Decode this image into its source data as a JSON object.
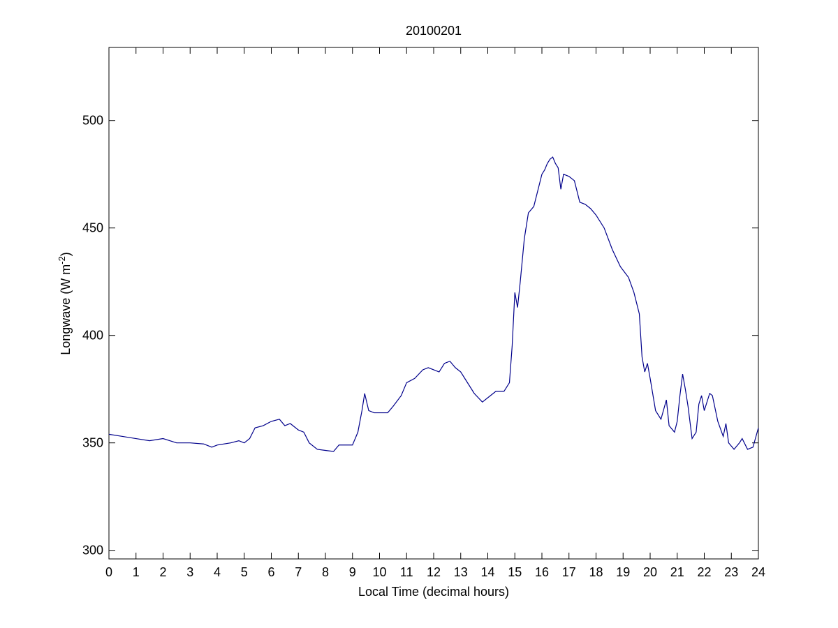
{
  "chart_data": {
    "type": "line",
    "title": "20100201",
    "x_label": "Local Time (decimal hours)",
    "y_label": "Longwave (W m",
    "y_label_sup": "-2",
    "y_label_end": ")",
    "xlim": [
      0,
      24
    ],
    "xticks": [
      0,
      1,
      2,
      3,
      4,
      5,
      6,
      7,
      8,
      9,
      10,
      11,
      12,
      13,
      14,
      15,
      16,
      17,
      18,
      19,
      20,
      21,
      22,
      23,
      24
    ],
    "ylim": [
      296,
      534
    ],
    "yticks": [
      300,
      350,
      400,
      450,
      500
    ],
    "x": [
      0,
      0.5,
      1,
      1.5,
      2,
      2.5,
      3,
      3.5,
      3.8,
      4,
      4.5,
      4.8,
      5,
      5.2,
      5.4,
      5.7,
      6,
      6.3,
      6.5,
      6.7,
      7,
      7.2,
      7.4,
      7.7,
      8,
      8.3,
      8.5,
      8.8,
      9,
      9.2,
      9.35,
      9.45,
      9.6,
      9.8,
      10,
      10.3,
      10.5,
      10.8,
      11,
      11.3,
      11.6,
      11.8,
      12,
      12.2,
      12.4,
      12.6,
      12.8,
      13,
      13.2,
      13.5,
      13.8,
      14,
      14.3,
      14.6,
      14.8,
      14.9,
      15,
      15.1,
      15.2,
      15.35,
      15.5,
      15.7,
      15.9,
      16,
      16.1,
      16.2,
      16.3,
      16.4,
      16.5,
      16.6,
      16.7,
      16.8,
      17,
      17.2,
      17.4,
      17.6,
      17.8,
      18,
      18.3,
      18.6,
      18.9,
      19.2,
      19.4,
      19.6,
      19.7,
      19.8,
      19.9,
      20,
      20.2,
      20.4,
      20.6,
      20.7,
      20.9,
      21,
      21.1,
      21.2,
      21.3,
      21.4,
      21.55,
      21.7,
      21.8,
      21.9,
      22,
      22.2,
      22.3,
      22.5,
      22.7,
      22.8,
      22.9,
      23.1,
      23.3,
      23.4,
      23.6,
      23.8,
      24
    ],
    "series": [
      {
        "name": "Longwave",
        "color": "#00008b",
        "values": [
          354,
          353,
          352,
          351,
          352,
          350,
          350,
          349.5,
          348,
          349,
          350,
          351,
          350,
          352,
          357,
          358,
          360,
          361,
          358,
          359,
          356,
          355,
          350,
          347,
          346.5,
          346,
          349,
          349,
          349,
          355,
          365,
          373,
          365,
          364,
          364,
          364,
          367,
          372,
          378,
          380,
          384,
          385,
          384,
          383,
          387,
          388,
          385,
          383,
          379,
          373,
          369,
          371,
          374,
          374,
          378,
          395,
          420,
          413,
          425,
          445,
          457,
          460,
          470,
          475,
          477,
          480,
          482,
          483,
          480,
          478,
          468,
          475,
          474,
          472,
          462,
          461,
          459,
          456,
          450,
          440,
          432,
          427,
          420,
          410,
          390,
          383,
          387,
          380,
          365,
          361,
          370,
          358,
          355,
          360,
          372,
          382,
          375,
          367,
          352,
          355,
          368,
          372,
          365,
          373,
          372,
          360,
          353,
          359,
          350,
          347,
          350,
          352,
          347,
          348,
          357
        ]
      }
    ]
  }
}
